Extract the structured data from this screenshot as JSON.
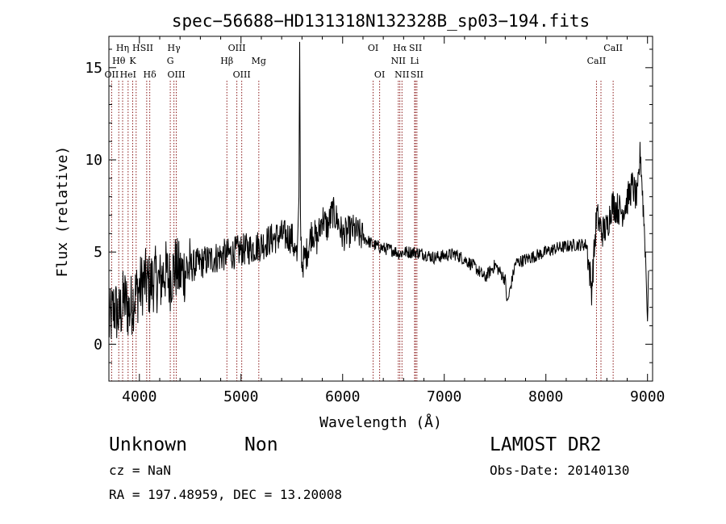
{
  "chart_data": {
    "type": "line",
    "title": "spec−56688−HD131318N132328B_sp03−194.fits",
    "xlabel": "Wavelength (Å)",
    "ylabel": "Flux (relative)",
    "xlim": [
      3700,
      9050
    ],
    "ylim": [
      -2.0,
      16.7
    ],
    "xticks": [
      4000,
      5000,
      6000,
      7000,
      8000,
      9000
    ],
    "xtick_labels": [
      "4000",
      "5000",
      "6000",
      "7000",
      "8000",
      "9000"
    ],
    "yticks": [
      0,
      5,
      10,
      15
    ],
    "ytick_labels": [
      "0",
      "5",
      "10",
      "15"
    ],
    "grid": false,
    "line_color": "#000000",
    "marker_color": "#8b1a1a",
    "spectral_lines": [
      {
        "label": "Hη",
        "wavelength": 3835,
        "row": 0
      },
      {
        "label": "Hθ",
        "wavelength": 3797,
        "row": 1
      },
      {
        "label": "OII",
        "wavelength": 3727,
        "row": 2
      },
      {
        "label": "HeI",
        "wavelength": 3889,
        "row": 2
      },
      {
        "label": "K",
        "wavelength": 3934,
        "row": 1
      },
      {
        "label": "H",
        "wavelength": 3968,
        "row": 0
      },
      {
        "label": "SII",
        "wavelength": 4072,
        "row": 0
      },
      {
        "label": "Hδ",
        "wavelength": 4102,
        "row": 2
      },
      {
        "label": "Hγ",
        "wavelength": 4340,
        "row": 0
      },
      {
        "label": "G",
        "wavelength": 4304,
        "row": 1
      },
      {
        "label": "OIII",
        "wavelength": 4363,
        "row": 2
      },
      {
        "label": "OIII",
        "wavelength": 4959,
        "row": 0
      },
      {
        "label": "Hβ",
        "wavelength": 4861,
        "row": 1
      },
      {
        "label": "OIII",
        "wavelength": 5007,
        "row": 2
      },
      {
        "label": "Mg",
        "wavelength": 5175,
        "row": 1
      },
      {
        "label": "OI",
        "wavelength": 6300,
        "row": 0
      },
      {
        "label": "OI",
        "wavelength": 6364,
        "row": 2
      },
      {
        "label": "Hα",
        "wavelength": 6563,
        "row": 0
      },
      {
        "label": "NII",
        "wavelength": 6548,
        "row": 1
      },
      {
        "label": "NII",
        "wavelength": 6584,
        "row": 2
      },
      {
        "label": "SII",
        "wavelength": 6717,
        "row": 0
      },
      {
        "label": "Li",
        "wavelength": 6708,
        "row": 1
      },
      {
        "label": "SII",
        "wavelength": 6731,
        "row": 2
      },
      {
        "label": "CaII",
        "wavelength": 8662,
        "row": 0
      },
      {
        "label": "CaII",
        "wavelength": 8498,
        "row": 1
      },
      {
        "label": "CaII",
        "wavelength": 8542,
        "row": -1
      }
    ],
    "series": [
      {
        "x": [
          3700,
          3750,
          3800,
          3850,
          3900,
          3950,
          4000,
          4050,
          4100,
          4150,
          4200,
          4250,
          4300,
          4350,
          4400,
          4500,
          4600,
          4700,
          4800,
          4900,
          5000,
          5100,
          5200,
          5300,
          5400,
          5500,
          5550,
          5570,
          5577,
          5585,
          5600,
          5650,
          5700,
          5750,
          5800,
          5850,
          5900,
          5950,
          6000,
          6100,
          6200,
          6300,
          6400,
          6500,
          6563,
          6600,
          6700,
          6800,
          6900,
          7000,
          7100,
          7200,
          7300,
          7400,
          7500,
          7600,
          7620,
          7700,
          7800,
          7900,
          8000,
          8100,
          8200,
          8300,
          8400,
          8450,
          8500,
          8550,
          8600,
          8650,
          8700,
          8750,
          8800,
          8850,
          8900,
          8930,
          8960,
          8980,
          9000,
          9010
        ],
        "y": [
          1.0,
          2.0,
          1.5,
          2.5,
          1.8,
          2.6,
          3.0,
          3.5,
          3.2,
          3.6,
          3.3,
          4.0,
          3.5,
          4.2,
          3.8,
          4.2,
          4.4,
          4.6,
          4.8,
          4.9,
          5.1,
          5.2,
          5.4,
          5.7,
          5.9,
          5.8,
          4.5,
          8.0,
          16.4,
          6.5,
          4.3,
          5.0,
          6.2,
          5.6,
          6.9,
          6.3,
          7.2,
          6.7,
          5.9,
          6.2,
          5.8,
          5.4,
          5.2,
          5.1,
          4.9,
          5.0,
          5.0,
          4.9,
          4.7,
          4.8,
          4.9,
          4.6,
          4.2,
          3.6,
          4.3,
          3.5,
          2.2,
          4.4,
          4.6,
          4.8,
          5.0,
          5.2,
          5.3,
          5.4,
          5.4,
          3.0,
          7.0,
          6.1,
          6.3,
          7.6,
          7.4,
          7.2,
          7.8,
          8.6,
          7.8,
          10.5,
          7.2,
          5.0,
          1.0,
          4.0
        ]
      }
    ]
  },
  "meta": {
    "class": "Unknown",
    "subclass": "Non",
    "survey": "LAMOST DR2",
    "cz": "cz = NaN",
    "obs_date": "Obs-Date: 20140130",
    "coords": "RA = 197.48959, DEC =  13.20008"
  }
}
